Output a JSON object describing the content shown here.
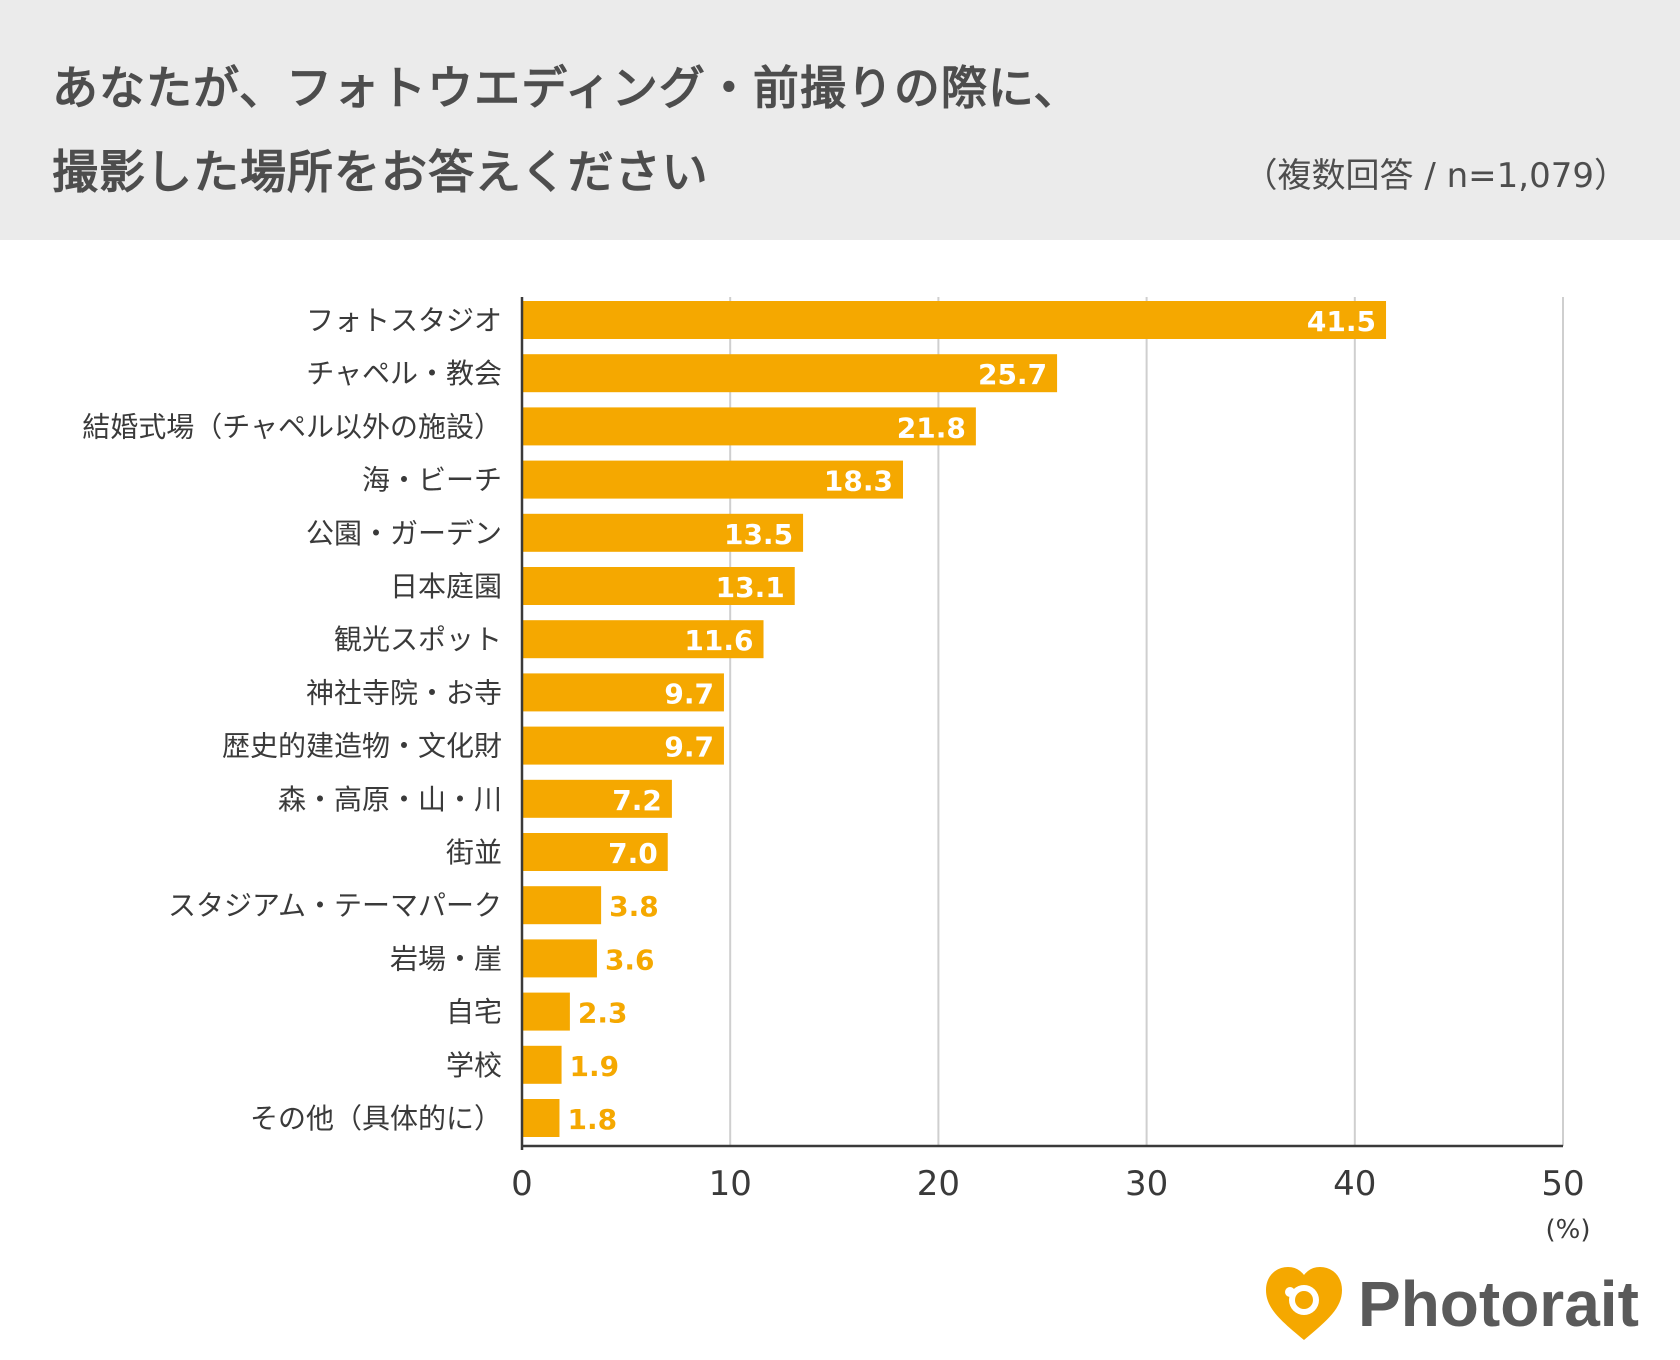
{
  "title_line1": "あなたが、フォトウエディング・前撮りの際に、",
  "title_line2": "撮影した場所をお答えください",
  "subtitle": "（複数回答 / n=1,079）",
  "brand": {
    "name": "Photorait",
    "color": "#f5a800"
  },
  "colors": {
    "bar": "#f5a800",
    "label_inside": "#ffffff",
    "label_outside": "#f5a800"
  },
  "chart_data": {
    "type": "bar",
    "orientation": "horizontal",
    "categories": [
      "フォトスタジオ",
      "チャペル・教会",
      "結婚式場（チャペル以外の施設）",
      "海・ビーチ",
      "公園・ガーデン",
      "日本庭園",
      "観光スポット",
      "神社寺院・お寺",
      "歴史的建造物・文化財",
      "森・高原・山・川",
      "街並",
      "スタジアム・テーマパーク",
      "岩場・崖",
      "自宅",
      "学校",
      "その他（具体的に）"
    ],
    "values": [
      41.5,
      25.7,
      21.8,
      18.3,
      13.5,
      13.1,
      11.6,
      9.7,
      9.7,
      7.2,
      7.0,
      3.8,
      3.6,
      2.3,
      1.9,
      1.8
    ],
    "value_labels": [
      "41.5",
      "25.7",
      "21.8",
      "18.3",
      "13.5",
      "13.1",
      "11.6",
      "9.7",
      "9.7",
      "7.2",
      "7.0",
      "3.8",
      "3.6",
      "2.3",
      "1.9",
      "1.8"
    ],
    "xlim": [
      0,
      50
    ],
    "xticks": [
      0,
      10,
      20,
      30,
      40,
      50
    ],
    "xtick_labels": [
      "0",
      "10",
      "20",
      "30",
      "40",
      "50"
    ],
    "unit": "(%)",
    "grid": true
  }
}
